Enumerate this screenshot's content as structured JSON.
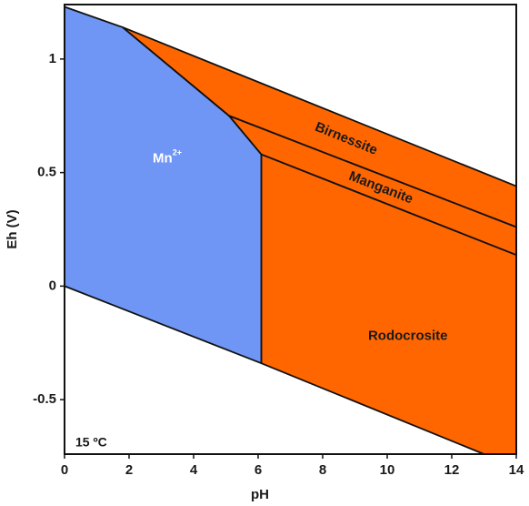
{
  "chart_data": {
    "type": "phase",
    "xlabel": "pH",
    "ylabel": "Eh (V)",
    "xlim": [
      0,
      14
    ],
    "ylim": [
      -0.74,
      1.24
    ],
    "xticks": [
      0,
      2,
      4,
      6,
      8,
      10,
      12,
      14
    ],
    "yticks": [
      -0.5,
      0,
      0.5,
      1
    ],
    "annotation": "15 ºC",
    "regions": [
      {
        "name": "Mn",
        "superscript": "2+",
        "color": "#6f96f5",
        "label_color": "#ffffff",
        "points": [
          [
            0,
            1.23
          ],
          [
            1.8,
            1.14
          ],
          [
            5.1,
            0.75
          ],
          [
            6.1,
            0.58
          ],
          [
            6.1,
            -0.34
          ],
          [
            0,
            0
          ]
        ]
      },
      {
        "name": "Birnessite",
        "color": "#ff6600",
        "label_color": "#1a1a1a",
        "points": [
          [
            1.8,
            1.14
          ],
          [
            14,
            0.44
          ],
          [
            14,
            0.26
          ],
          [
            5.1,
            0.75
          ]
        ]
      },
      {
        "name": "Manganite",
        "color": "#ff6600",
        "label_color": "#1a1a1a",
        "points": [
          [
            5.1,
            0.75
          ],
          [
            14,
            0.26
          ],
          [
            14,
            0.137
          ],
          [
            6.1,
            0.58
          ]
        ]
      },
      {
        "name": "Rodocrosite",
        "color": "#ff6600",
        "label_color": "#1a1a1a",
        "points": [
          [
            6.1,
            0.58
          ],
          [
            14,
            0.137
          ],
          [
            14,
            -0.74
          ],
          [
            13,
            -0.74
          ],
          [
            6.1,
            -0.34
          ]
        ]
      }
    ]
  }
}
